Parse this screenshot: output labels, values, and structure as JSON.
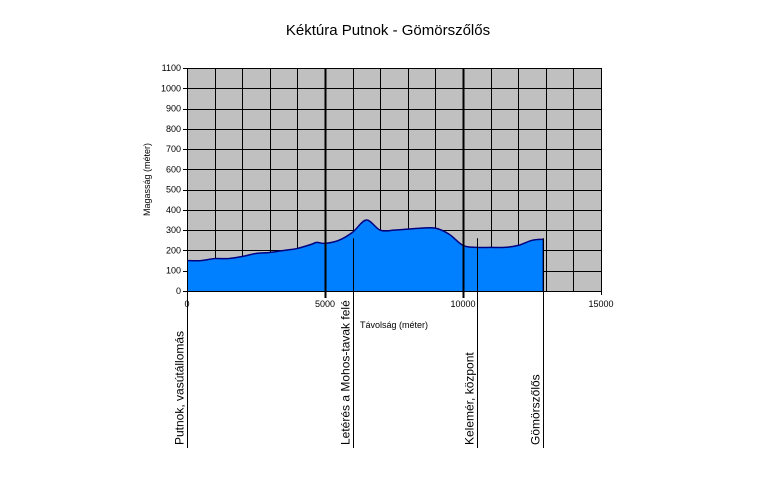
{
  "chart_data": {
    "type": "area",
    "title": "Kéktúra Putnok - Gömörszőlős",
    "xlabel": "Távolság (méter)",
    "ylabel": "Magasság (méter)",
    "xlim": [
      0,
      15000
    ],
    "ylim": [
      0,
      1100
    ],
    "x_ticks": [
      0,
      5000,
      10000,
      15000
    ],
    "y_ticks": [
      0,
      100,
      200,
      300,
      400,
      500,
      600,
      700,
      800,
      900,
      1000,
      1100
    ],
    "x_tick_labels": [
      "0",
      "5000",
      "10000",
      "15000"
    ],
    "y_tick_labels": [
      "0",
      "100",
      "200",
      "300",
      "400",
      "500",
      "600",
      "700",
      "800",
      "900",
      "1000",
      "1100"
    ],
    "grid": true,
    "colors": {
      "plot_background": "#c0c0c0",
      "area_fill": "#0080ff",
      "area_line": "#000080",
      "grid": "#000000"
    },
    "series": [
      {
        "x": [
          0,
          500,
          1000,
          1500,
          2000,
          2500,
          3000,
          3500,
          4000,
          4500,
          4700,
          5000,
          5500,
          6000,
          6500,
          7000,
          7500,
          8000,
          8500,
          9000,
          9500,
          10000,
          10500,
          11000,
          11500,
          12000,
          12500,
          12900
        ],
        "values": [
          150,
          150,
          160,
          160,
          170,
          185,
          190,
          200,
          210,
          230,
          240,
          235,
          250,
          290,
          350,
          300,
          300,
          305,
          310,
          310,
          280,
          225,
          215,
          215,
          215,
          225,
          250,
          255
        ]
      }
    ],
    "locations": [
      {
        "label": "Putnok, vasútállomás",
        "x": 0
      },
      {
        "label": "Letérés a Mohos-tavak felé",
        "x": 6000
      },
      {
        "label": "Kelemér, központ",
        "x": 10500
      },
      {
        "label": "Gömörszőlős",
        "x": 12900
      }
    ],
    "markers": [
      5000,
      10000
    ]
  }
}
